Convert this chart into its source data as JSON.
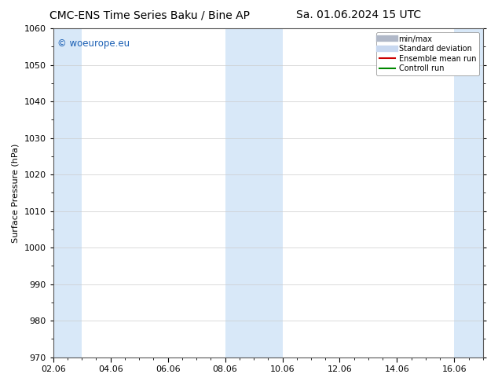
{
  "title_left": "CMC-ENS Time Series Baku / Bine AP",
  "title_right": "Sa. 01.06.2024 15 UTC",
  "ylabel": "Surface Pressure (hPa)",
  "ylim": [
    970,
    1060
  ],
  "yticks": [
    970,
    980,
    990,
    1000,
    1010,
    1020,
    1030,
    1040,
    1050,
    1060
  ],
  "xlim": [
    0,
    15
  ],
  "xtick_labels": [
    "02.06",
    "04.06",
    "06.06",
    "08.06",
    "10.06",
    "12.06",
    "14.06",
    "16.06"
  ],
  "xtick_positions": [
    0,
    2,
    4,
    6,
    8,
    10,
    12,
    14
  ],
  "shaded_bands": [
    {
      "x_start": 0.0,
      "x_end": 1.0
    },
    {
      "x_start": 6.0,
      "x_end": 8.0
    },
    {
      "x_start": 14.0,
      "x_end": 15.0
    }
  ],
  "band_color": "#d8e8f8",
  "watermark_text": "© woeurope.eu",
  "watermark_color": "#1a5fb4",
  "legend_items": [
    {
      "label": "min/max",
      "color": "#b0b8c8",
      "lw": 6,
      "ls": "-"
    },
    {
      "label": "Standard deviation",
      "color": "#c8d8f0",
      "lw": 6,
      "ls": "-"
    },
    {
      "label": "Ensemble mean run",
      "color": "#cc0000",
      "lw": 1.5,
      "ls": "-"
    },
    {
      "label": "Controll run",
      "color": "#008800",
      "lw": 1.5,
      "ls": "-"
    }
  ],
  "bg_color": "#ffffff",
  "grid_color": "#cccccc",
  "title_fontsize": 10,
  "axis_label_fontsize": 8,
  "tick_fontsize": 8,
  "legend_fontsize": 7
}
